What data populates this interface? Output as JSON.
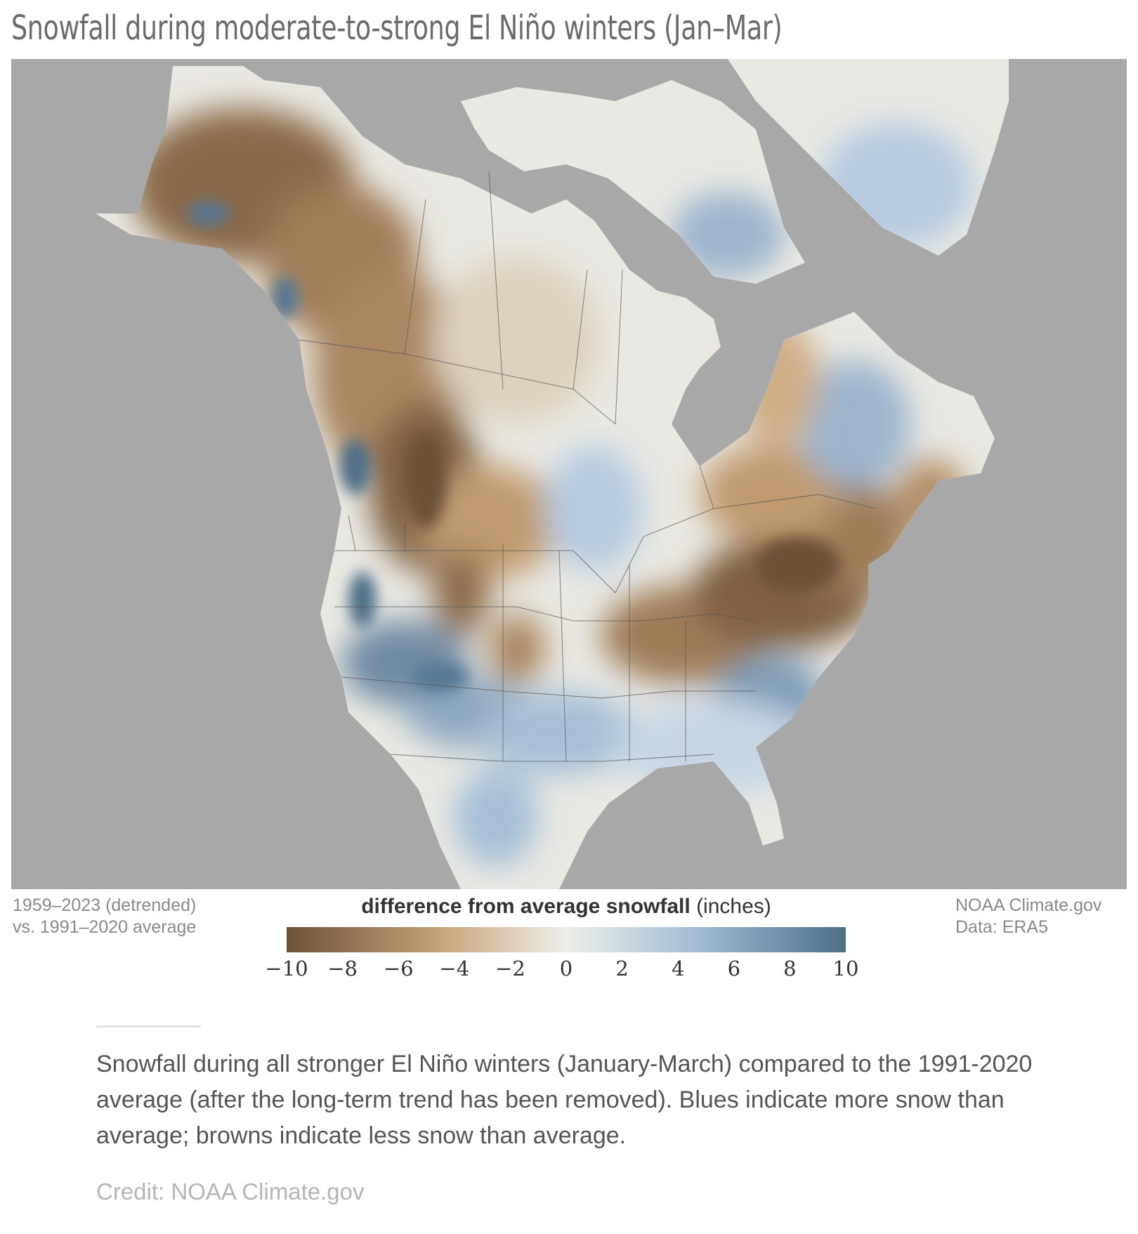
{
  "title": "Snowfall during moderate-to-strong El Niño winters (Jan–Mar)",
  "note_left": {
    "line1": "1959–2023 (detrended)",
    "line2": "vs. 1991–2020 average"
  },
  "legend": {
    "title_bold": "difference from average snowfall",
    "title_unit": "(inches)",
    "ticks": [
      "−10",
      "−8",
      "−6",
      "−4",
      "−2",
      "0",
      "2",
      "4",
      "6",
      "8",
      "10"
    ],
    "colors": {
      "low": "#6b5138",
      "mid_low": "#c9a57c",
      "zero": "#eeeeea",
      "mid_high": "#a6bfd6",
      "high": "#4f6f87"
    }
  },
  "note_right": {
    "line1": "NOAA Climate.gov",
    "line2": "Data: ERA5"
  },
  "caption": "Snowfall during all stronger El Niño winters (January-March) compared to the 1991-2020 average (after the long-term trend has been removed). Blues indicate more snow than average; browns indicate less snow than average.",
  "credit": "Credit: NOAA Climate.gov",
  "map": {
    "ocean_color": "#a8a8a8",
    "land_neutral": "#e9e8e3",
    "border_color": "#555555"
  }
}
